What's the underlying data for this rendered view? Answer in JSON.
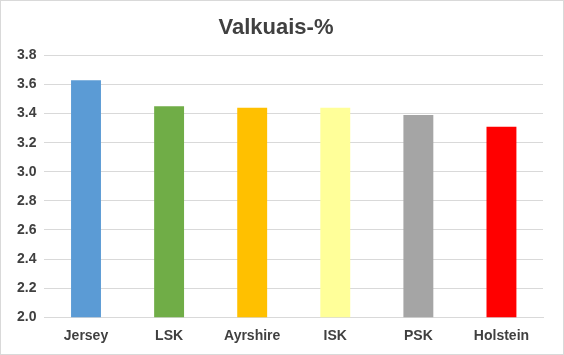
{
  "chart_data": {
    "type": "bar",
    "title": "Valkuais-%",
    "categories": [
      "Jersey",
      "LSK",
      "Ayrshire",
      "ISK",
      "PSK",
      "Holstein"
    ],
    "values": [
      3.63,
      3.45,
      3.44,
      3.44,
      3.39,
      3.31
    ],
    "colors": [
      "#5b9bd5",
      "#70ad47",
      "#ffc000",
      "#ffff99",
      "#a5a5a5",
      "#ff0000"
    ],
    "ylim": [
      2.0,
      3.8
    ],
    "yticks": [
      {
        "value": 2.0,
        "label": "2.0"
      },
      2.2,
      2.4,
      2.6,
      2.8,
      {
        "value": 3.0,
        "label": "3.0"
      },
      3.2,
      3.4,
      3.6,
      3.8
    ],
    "grid": true
  }
}
